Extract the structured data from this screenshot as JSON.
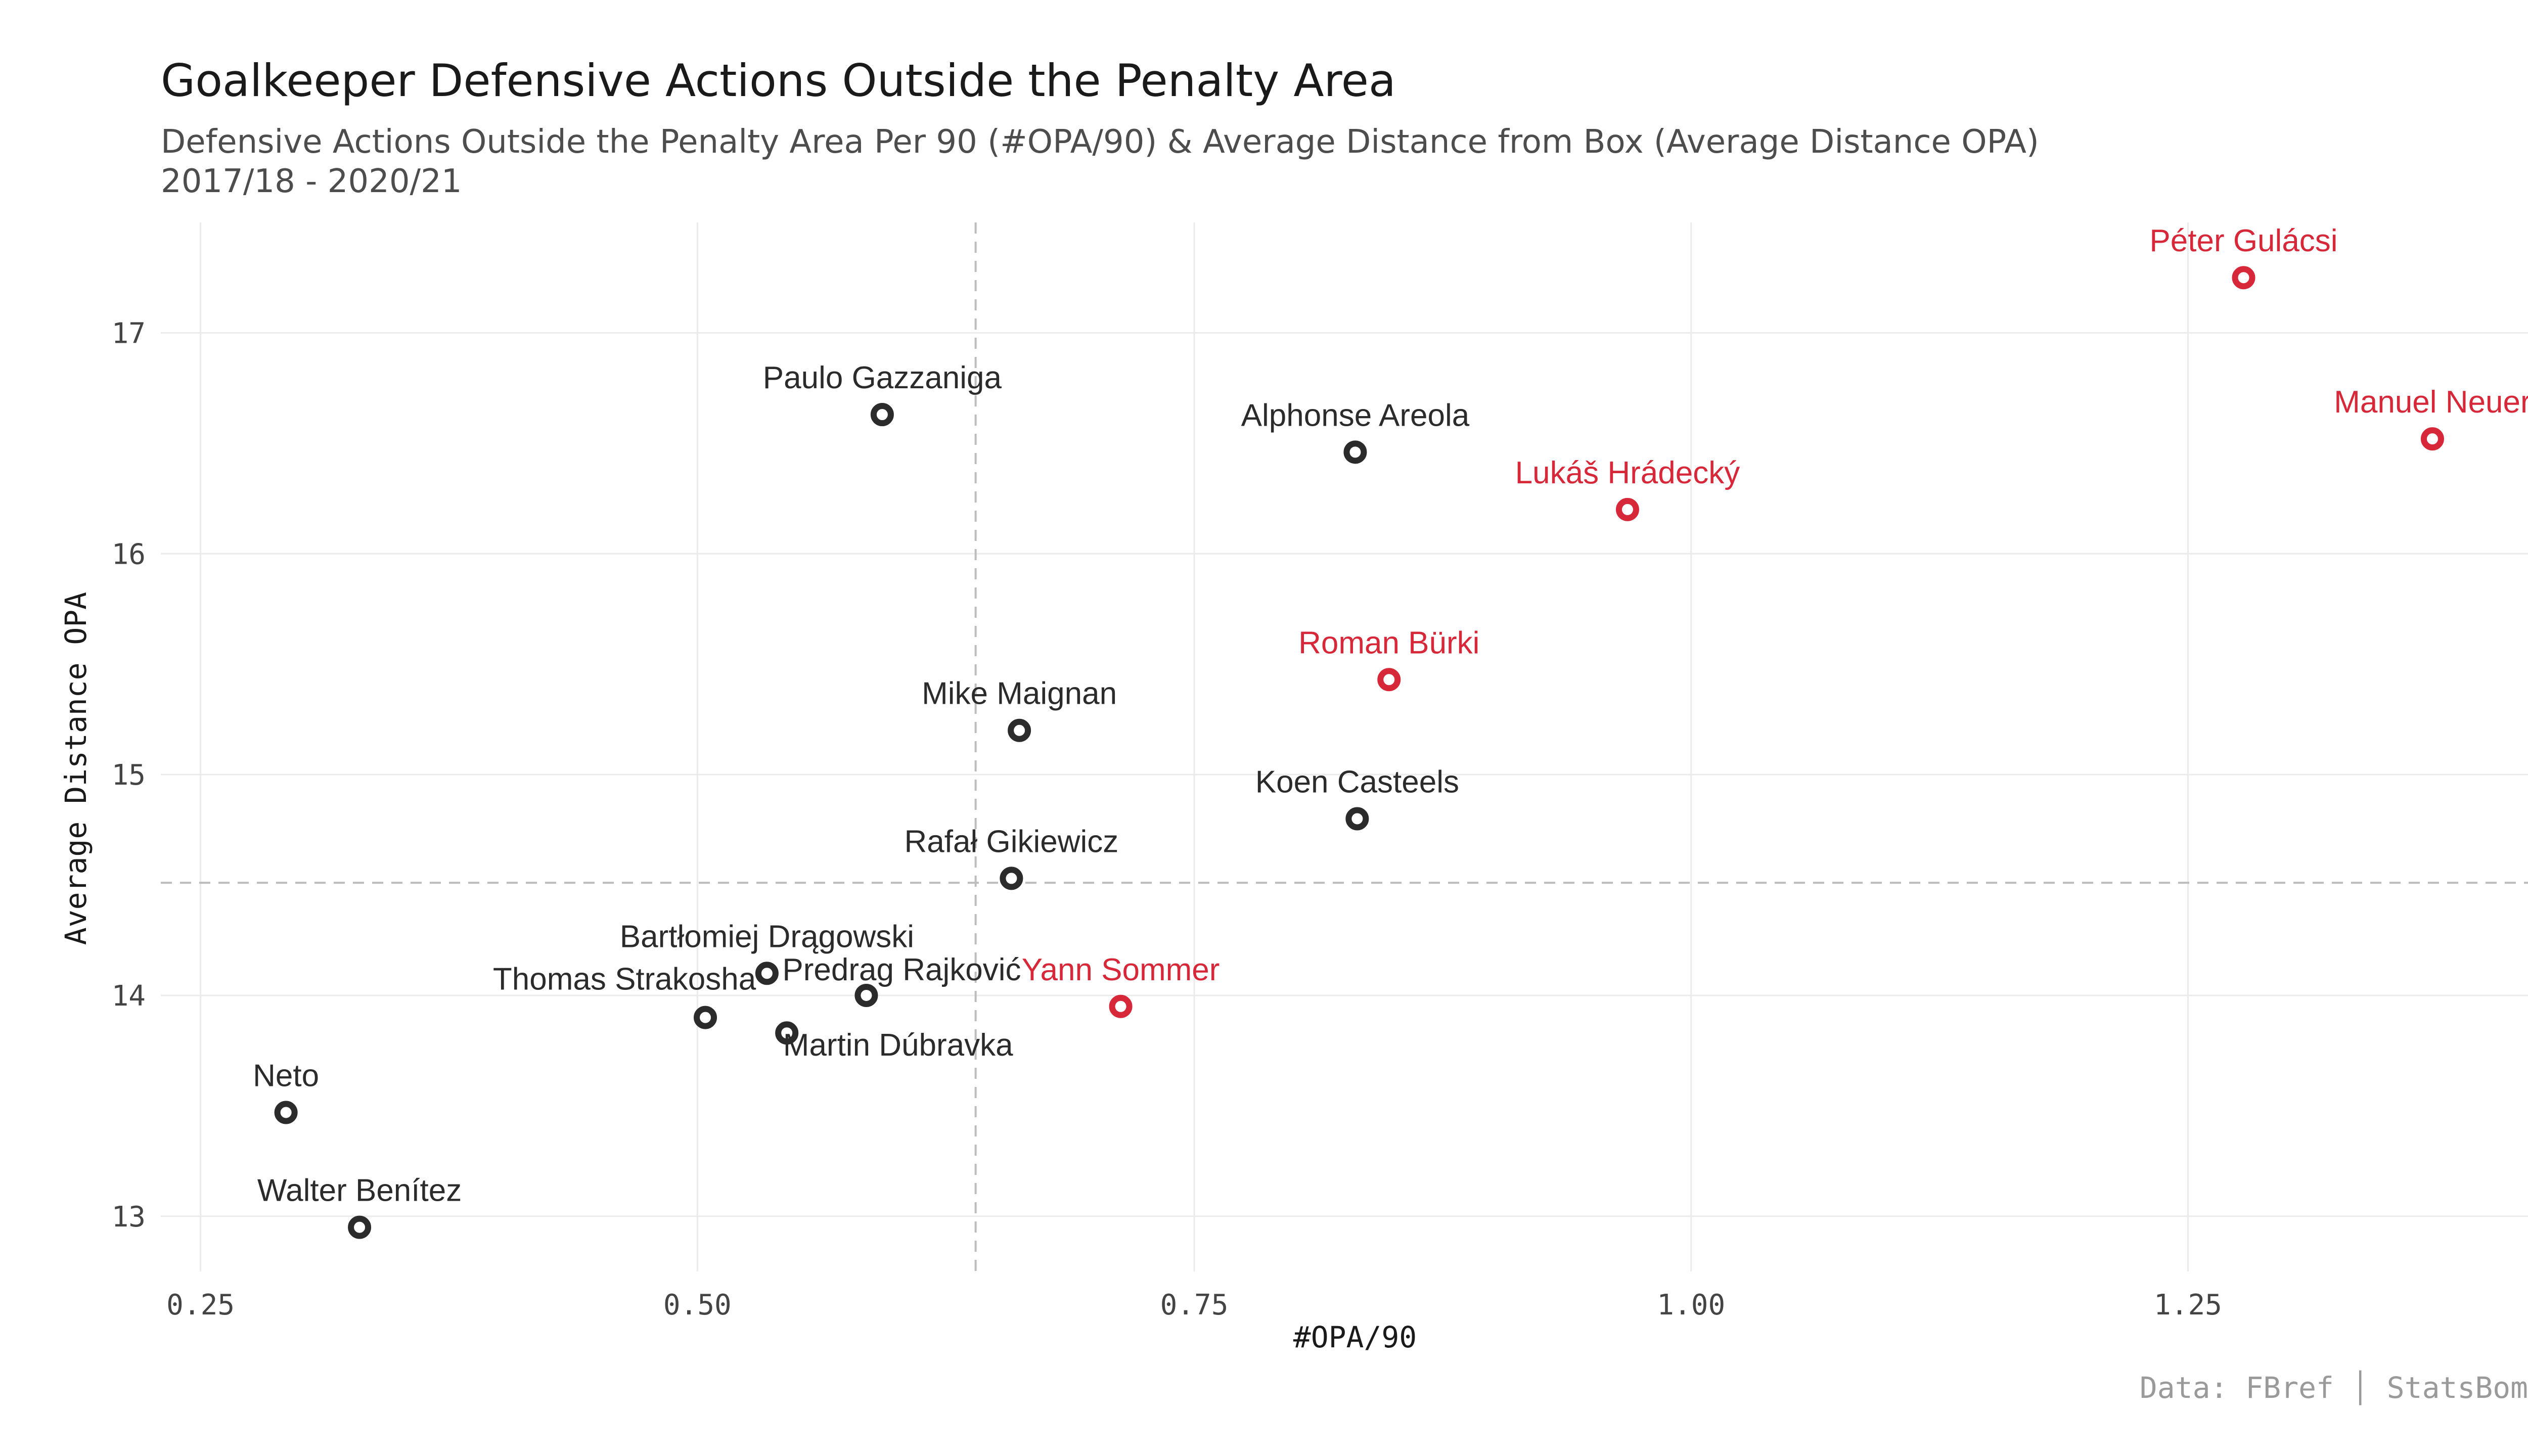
{
  "colors": {
    "highlight": "#d62839",
    "default": "#2b2b2b"
  },
  "chart_data": {
    "type": "scatter",
    "title": "Goalkeeper Defensive Actions Outside the Penalty Area",
    "subtitle_line1": "Defensive Actions Outside the Penalty Area Per 90 (#OPA/90) & Average Distance from Box (Average Distance OPA)",
    "subtitle_line2": "2017/18 - 2020/21",
    "xlabel": "#OPA/90",
    "ylabel": "Average Distance OPA",
    "caption": "Data: FBref │ StatsBomb",
    "xlim": [
      0.23,
      1.43
    ],
    "ylim": [
      12.75,
      17.5
    ],
    "xticks": [
      0.25,
      0.5,
      0.75,
      1.0,
      1.25
    ],
    "xtick_labels": [
      "0.25",
      "0.50",
      "0.75",
      "1.00",
      "1.25"
    ],
    "yticks": [
      13,
      14,
      15,
      16,
      17
    ],
    "ytick_labels": [
      "13",
      "14",
      "15",
      "16",
      "17"
    ],
    "reference_lines": {
      "x": 0.64,
      "y": 14.51
    },
    "grid": true,
    "legend": "none",
    "points": [
      {
        "name": "Péter Gulácsi",
        "x": 1.278,
        "y": 17.25,
        "highlight": true
      },
      {
        "name": "Manuel Neuer",
        "x": 1.373,
        "y": 16.52,
        "highlight": true
      },
      {
        "name": "Lukáš Hrádecký",
        "x": 0.968,
        "y": 16.2,
        "highlight": true
      },
      {
        "name": "Roman Bürki",
        "x": 0.848,
        "y": 15.43,
        "highlight": true
      },
      {
        "name": "Yann Sommer",
        "x": 0.713,
        "y": 13.95,
        "highlight": true
      },
      {
        "name": "Paulo Gazzaniga",
        "x": 0.593,
        "y": 16.63,
        "highlight": false
      },
      {
        "name": "Alphonse Areola",
        "x": 0.831,
        "y": 16.46,
        "highlight": false
      },
      {
        "name": "Mike Maignan",
        "x": 0.662,
        "y": 15.2,
        "highlight": false
      },
      {
        "name": "Koen Casteels",
        "x": 0.832,
        "y": 14.8,
        "highlight": false
      },
      {
        "name": "Rafał Gikiewicz",
        "x": 0.658,
        "y": 14.53,
        "highlight": false
      },
      {
        "name": "Bartłomiej Drągowski",
        "x": 0.535,
        "y": 14.1,
        "highlight": false
      },
      {
        "name": "Predrag Rajković",
        "x": 0.585,
        "y": 14.0,
        "highlight": false
      },
      {
        "name": "Thomas Strakosha",
        "x": 0.504,
        "y": 13.9,
        "highlight": false
      },
      {
        "name": "Martin Dúbravka",
        "x": 0.545,
        "y": 13.83,
        "highlight": false
      },
      {
        "name": "Neto",
        "x": 0.293,
        "y": 13.47,
        "highlight": false
      },
      {
        "name": "Walter Benítez",
        "x": 0.33,
        "y": 12.95,
        "highlight": false
      }
    ]
  }
}
